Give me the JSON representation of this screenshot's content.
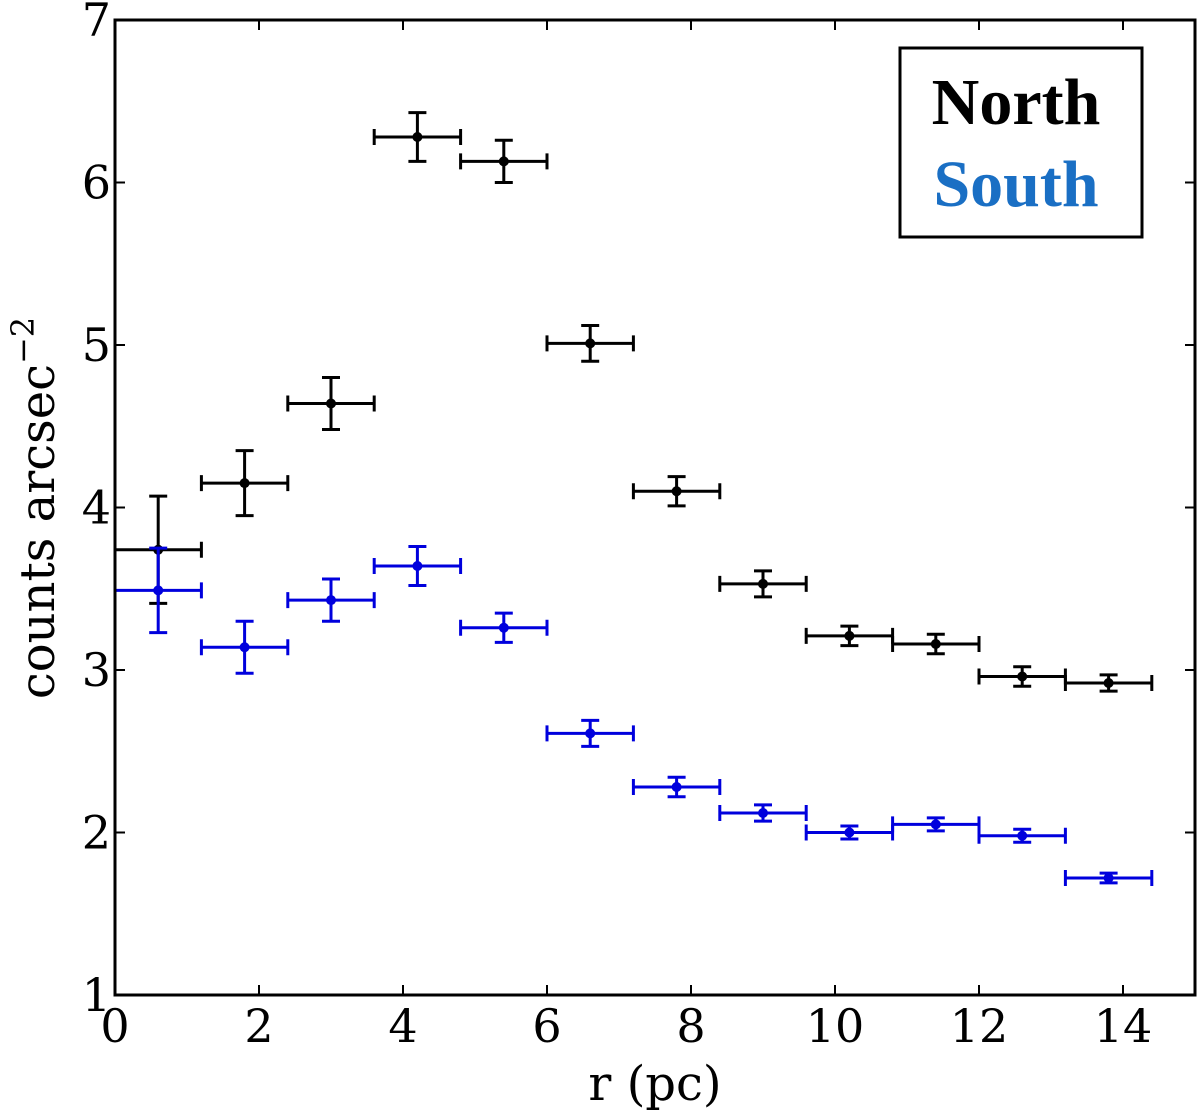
{
  "chart_data": {
    "type": "scatter",
    "title": "",
    "xlabel": "r (pc)",
    "ylabel": "counts arcsec",
    "ylabel_exponent": "−2",
    "xlim": [
      0,
      15
    ],
    "ylim": [
      1,
      7
    ],
    "xticks": [
      0,
      2,
      4,
      6,
      8,
      10,
      12,
      14
    ],
    "yticks": [
      1,
      2,
      3,
      4,
      5,
      6,
      7
    ],
    "grid": false,
    "legend_position": "top-right",
    "x_bin_halfwidth": 0.6,
    "series": [
      {
        "name": "North",
        "color": "#000000",
        "legend_color": "#000000",
        "x": [
          0.6,
          1.8,
          3.0,
          4.2,
          5.4,
          6.6,
          7.8,
          9.0,
          10.2,
          11.4,
          12.6,
          13.8
        ],
        "y": [
          3.74,
          4.15,
          4.64,
          6.28,
          6.13,
          5.01,
          4.1,
          3.53,
          3.21,
          3.16,
          2.96,
          2.92
        ],
        "yerr": [
          0.33,
          0.2,
          0.16,
          0.15,
          0.13,
          0.11,
          0.09,
          0.08,
          0.06,
          0.06,
          0.06,
          0.05
        ]
      },
      {
        "name": "South",
        "color": "#0000dd",
        "legend_color": "#1a6fc4",
        "x": [
          0.6,
          1.8,
          3.0,
          4.2,
          5.4,
          6.6,
          7.8,
          9.0,
          10.2,
          11.4,
          12.6,
          13.8
        ],
        "y": [
          3.49,
          3.14,
          3.43,
          3.64,
          3.26,
          2.61,
          2.28,
          2.12,
          2.0,
          2.05,
          1.98,
          1.72
        ],
        "yerr": [
          0.26,
          0.16,
          0.13,
          0.12,
          0.09,
          0.08,
          0.06,
          0.05,
          0.04,
          0.04,
          0.04,
          0.03
        ]
      }
    ]
  }
}
